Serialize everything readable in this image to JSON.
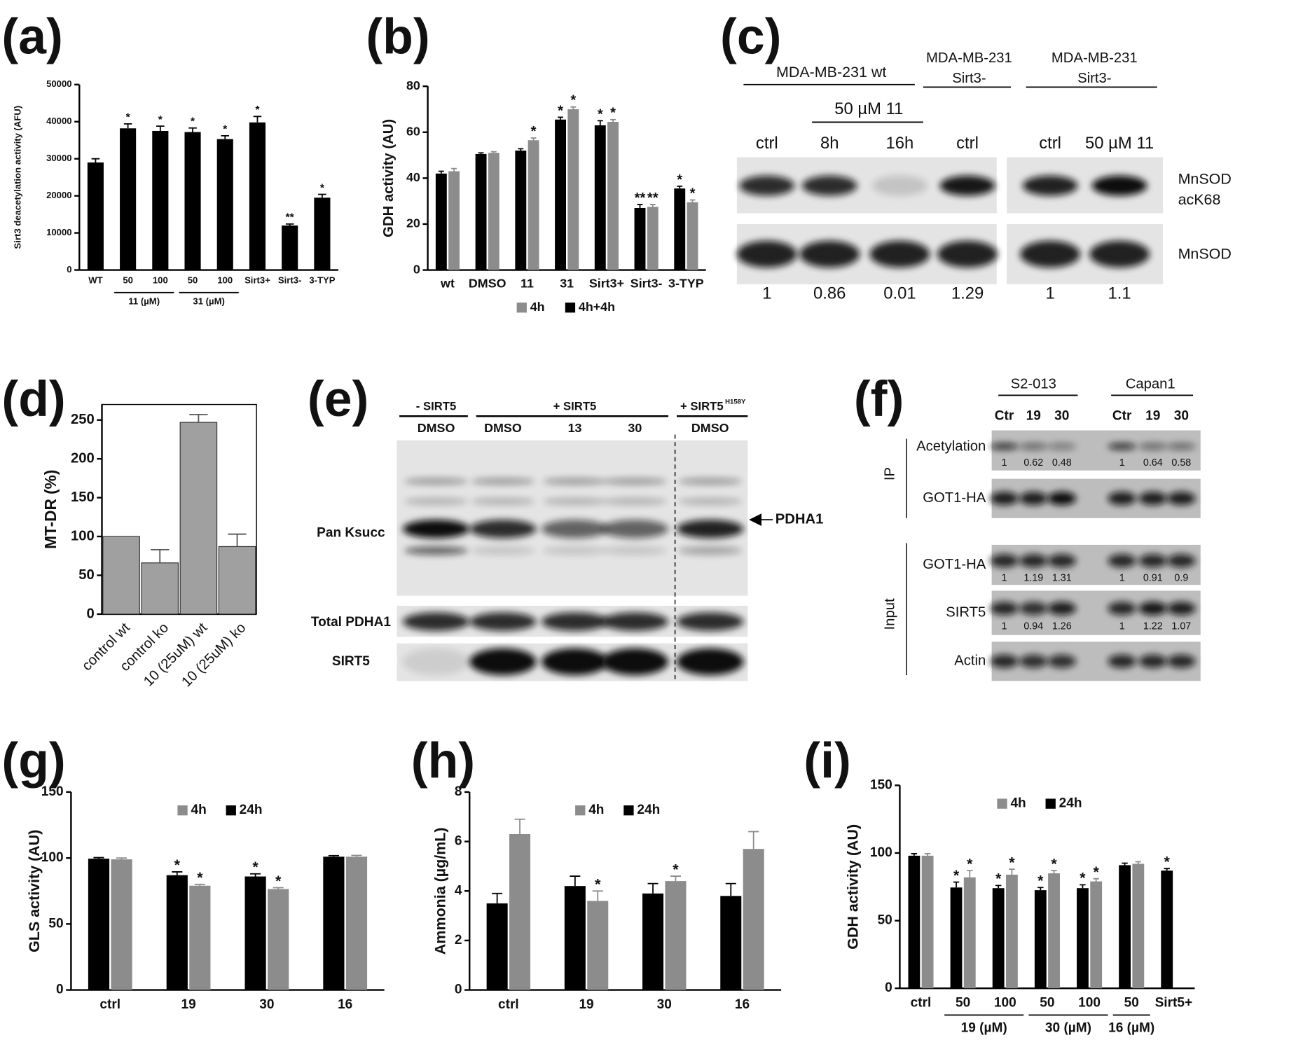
{
  "panels": [
    "(a)",
    "(b)",
    "(c)",
    "(d)",
    "(e)",
    "(f)",
    "(g)",
    "(h)",
    "(i)"
  ],
  "chart_data": [
    {
      "type": "bar",
      "y_label": "Sirt3 deacetylation activity (AFU)",
      "categories": [
        "WT",
        "50",
        "100",
        "50",
        "100",
        "Sirt3+",
        "Sirt3-",
        "3-TYP"
      ],
      "groups": [
        "11 (µM)",
        "31 (µM)"
      ],
      "series": [
        {
          "color": "#000000",
          "values": [
            29000,
            38200,
            37500,
            37200,
            35300,
            39800,
            12000,
            19500
          ],
          "errors": [
            1000,
            1200,
            1300,
            1100,
            900,
            1600,
            400,
            900
          ],
          "significance": [
            null,
            "*",
            "*",
            "*",
            "*",
            "*",
            "**",
            "*"
          ]
        }
      ],
      "ylim": [
        0,
        50000
      ],
      "yticks": [
        0,
        10000,
        20000,
        30000,
        40000,
        50000
      ]
    },
    {
      "type": "bar",
      "y_label": "GDH activity (AU)",
      "categories": [
        "wt",
        "DMSO",
        "11",
        "31",
        "Sirt3+",
        "Sirt3-",
        "3-TYP"
      ],
      "series": [
        {
          "name": "4h+4h",
          "color": "#000000",
          "values": [
            42,
            50.5,
            52,
            65.5,
            63,
            27,
            35.5
          ],
          "errors": [
            1,
            0.5,
            0.8,
            1,
            2,
            1.5,
            1
          ],
          "significance": [
            null,
            null,
            null,
            "*",
            "*",
            "**",
            "*"
          ]
        },
        {
          "name": "4h",
          "color": "#8c8c8c",
          "values": [
            43,
            51,
            56.5,
            70,
            64.5,
            27.5,
            29.5
          ],
          "errors": [
            1.2,
            0.5,
            1,
            1,
            1,
            1,
            1
          ],
          "significance": [
            null,
            null,
            "*",
            "*",
            "*",
            "**",
            "*"
          ]
        }
      ],
      "legend": "bottom",
      "ylim": [
        0,
        80
      ],
      "yticks": [
        0,
        20,
        40,
        60,
        80
      ]
    },
    {
      "type": "bar",
      "y_label": "MT-DR (%)",
      "categories": [
        "control wt",
        "control ko",
        "10 (25uM) wt",
        "10 (25uM) ko"
      ],
      "series": [
        {
          "color": "#a0a0a0",
          "values": [
            100,
            66,
            247,
            87
          ],
          "errors": [
            null,
            17,
            10,
            16
          ]
        }
      ],
      "frame": true,
      "ylim": [
        0,
        270
      ],
      "yticks": [
        0,
        50,
        100,
        150,
        200,
        250
      ]
    },
    {
      "type": "bar",
      "y_label": "GLS activity (AU)",
      "categories": [
        "ctrl",
        "19",
        "30",
        "16"
      ],
      "series": [
        {
          "name": "24h",
          "color": "#000000",
          "values": [
            99.5,
            87,
            86,
            101
          ],
          "errors": [
            0.8,
            2.5,
            2,
            0.8
          ],
          "significance": [
            null,
            "*",
            "*",
            null
          ]
        },
        {
          "name": "4h",
          "color": "#8c8c8c",
          "values": [
            99,
            79,
            76.5,
            101
          ],
          "errors": [
            1,
            1,
            1,
            1
          ],
          "significance": [
            null,
            "*",
            "*",
            null
          ]
        }
      ],
      "legend": "top",
      "ylim": [
        0,
        150
      ],
      "yticks": [
        0,
        50,
        100,
        150
      ]
    },
    {
      "type": "bar",
      "y_label": "Ammonia (µg/mL)",
      "categories": [
        "ctrl",
        "19",
        "30",
        "16"
      ],
      "series": [
        {
          "name": "24h",
          "color": "#000000",
          "values": [
            3.5,
            4.2,
            3.9,
            3.8
          ],
          "errors": [
            0.4,
            0.4,
            0.4,
            0.5
          ]
        },
        {
          "name": "4h",
          "color": "#8c8c8c",
          "values": [
            6.3,
            3.6,
            4.4,
            5.7
          ],
          "errors": [
            0.6,
            0.4,
            0.2,
            0.7
          ],
          "significance": [
            null,
            "*",
            "*",
            null
          ]
        }
      ],
      "legend": "top",
      "ylim": [
        0,
        8
      ],
      "yticks": [
        0,
        2,
        4,
        6,
        8
      ]
    },
    {
      "type": "bar",
      "y_label": "GDH activity (AU)",
      "categories": [
        "ctrl",
        "50",
        "100",
        "50",
        "100",
        "50",
        "Sirt5+"
      ],
      "groups": [
        "19 (µM)",
        "30 (µM)",
        "16 (µM)"
      ],
      "series": [
        {
          "name": "24h",
          "color": "#000000",
          "values": [
            98,
            74.5,
            74,
            72.5,
            74,
            91,
            87
          ],
          "errors": [
            1.5,
            4,
            2,
            2,
            2.5,
            1.5,
            1.5
          ],
          "significance": [
            null,
            "*",
            "*",
            "*",
            "*",
            null,
            "*"
          ]
        },
        {
          "name": "4h",
          "color": "#8c8c8c",
          "values": [
            98,
            82,
            84,
            85,
            79,
            92,
            null
          ],
          "errors": [
            1.5,
            5,
            4,
            2,
            2,
            1.5,
            null
          ],
          "significance": [
            null,
            "*",
            "*",
            "*",
            "*",
            null,
            null
          ]
        }
      ],
      "legend": "top",
      "ylim": [
        0,
        150
      ],
      "yticks": [
        0,
        50,
        100,
        150
      ]
    }
  ],
  "blots": {
    "c": {
      "header_wt": "MDA-MB-231 wt",
      "header_ko": [
        [
          "MDA-MB-231",
          "Sirt3-"
        ],
        [
          "MDA-MB-231",
          "Sirt3-"
        ]
      ],
      "treatment": "50 µM 11",
      "lanes": [
        "ctrl",
        "8h",
        "16h",
        "ctrl",
        "ctrl",
        "50 µM 11"
      ],
      "row_top": [
        "MnSOD",
        "acK68"
      ],
      "row_bottom": "MnSOD",
      "ratios": [
        1,
        0.86,
        0.01,
        1.29,
        1,
        1.1
      ]
    },
    "e": {
      "conditions": [
        "- SIRT5",
        "+ SIRT5",
        "+ SIRT5"
      ],
      "mutant": "H158Y",
      "lanes": [
        "DMSO",
        "DMSO",
        "13",
        "30",
        "DMSO"
      ],
      "rows": [
        "Pan Ksucc",
        "Total PDHA1",
        "SIRT5"
      ],
      "arrow": "PDHA1"
    },
    "f": {
      "cell_lines": [
        "S2-013",
        "Capan1"
      ],
      "lanes": [
        "Ctr",
        "19",
        "30",
        "Ctr",
        "19",
        "30"
      ],
      "sections": [
        "IP",
        "Input"
      ],
      "rows": [
        "Acetylation",
        "GOT1-HA",
        "GOT1-HA",
        "SIRT5",
        "Actin"
      ],
      "ratios_acetylation": [
        1,
        0.62,
        0.48,
        1,
        0.64,
        0.58
      ],
      "ratios_got1": [
        1,
        1.19,
        1.31,
        1,
        0.91,
        0.9
      ],
      "ratios_sirt5": [
        1,
        0.94,
        1.26,
        1,
        1.22,
        1.07
      ]
    }
  }
}
